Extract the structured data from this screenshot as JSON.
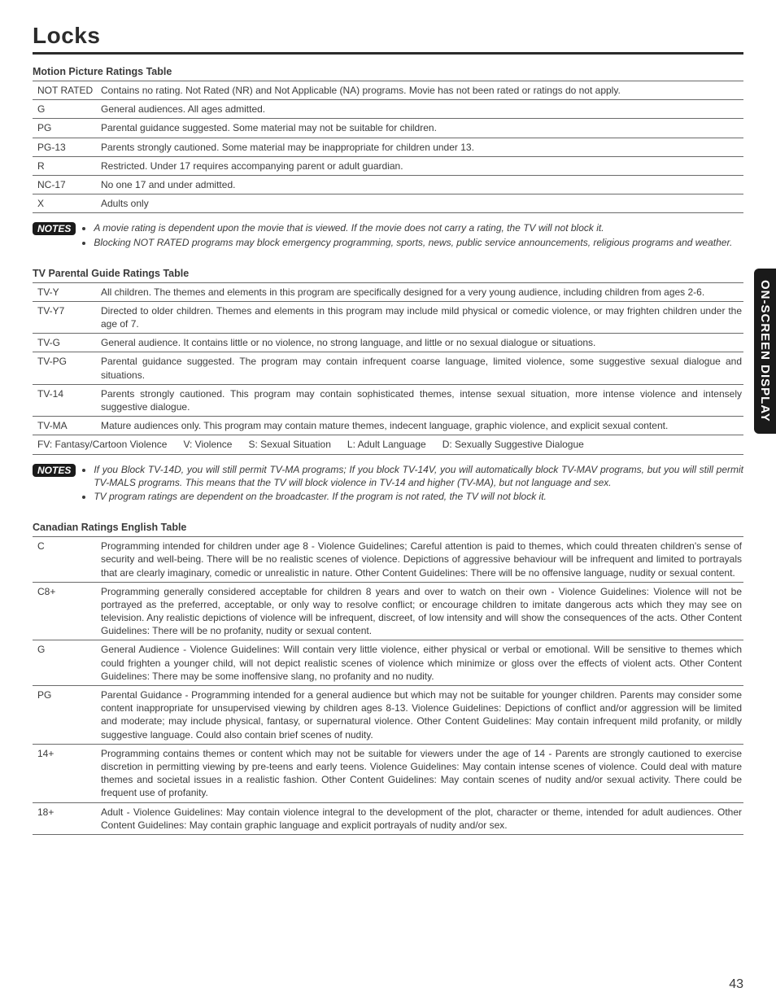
{
  "page": {
    "title": "Locks",
    "side_tab": "ON-SCREEN DISPLAY",
    "number": "43"
  },
  "mpaa": {
    "heading": "Motion Picture Ratings Table",
    "rows": [
      {
        "code": "NOT RATED",
        "desc": "Contains no rating. Not Rated (NR) and Not Applicable (NA) programs. Movie has not been rated or ratings do not apply."
      },
      {
        "code": "G",
        "desc": "General audiences. All ages admitted."
      },
      {
        "code": "PG",
        "desc": "Parental guidance suggested. Some material may not be suitable for children."
      },
      {
        "code": "PG-13",
        "desc": "Parents strongly cautioned. Some material may be inappropriate for children under 13."
      },
      {
        "code": "R",
        "desc": "Restricted. Under 17 requires accompanying parent or adult guardian."
      },
      {
        "code": "NC-17",
        "desc": "No one 17 and under admitted."
      },
      {
        "code": "X",
        "desc": "Adults only"
      }
    ],
    "notes_label": "NOTES",
    "notes": [
      "A movie rating is dependent upon the movie that is viewed. If the movie does not carry a rating, the TV will not block it.",
      "Blocking NOT RATED programs may block emergency programming, sports, news, public service announcements, religious programs and weather."
    ]
  },
  "tvpg": {
    "heading": "TV Parental Guide Ratings Table",
    "rows": [
      {
        "code": "TV-Y",
        "desc": "All children. The themes and elements in this program are specifically designed for a very young audience, including children from ages 2-6."
      },
      {
        "code": "TV-Y7",
        "desc": "Directed to older children. Themes and elements in this program may include mild physical or comedic violence, or may frighten children under the age of 7."
      },
      {
        "code": "TV-G",
        "desc": "General audience. It contains little or no violence, no strong language, and little or no sexual dialogue or situations."
      },
      {
        "code": "TV-PG",
        "desc": "Parental guidance suggested. The program may contain infrequent coarse language, limited violence, some suggestive sexual dialogue and situations."
      },
      {
        "code": "TV-14",
        "desc": "Parents strongly cautioned. This program may contain sophisticated themes, intense sexual situation, more intense violence and intensely suggestive dialogue."
      },
      {
        "code": "TV-MA",
        "desc": "Mature audiences only. This program may contain mature themes, indecent language, graphic violence, and explicit sexual content."
      }
    ],
    "abbr": {
      "fv": "FV: Fantasy/Cartoon Violence",
      "v": "V: Violence",
      "s": "S: Sexual Situation",
      "l": "L: Adult Language",
      "d": "D: Sexually Suggestive Dialogue"
    },
    "notes_label": "NOTES",
    "notes": [
      "If you Block TV-14D, you will still permit TV-MA programs; If you block TV-14V, you will automatically block TV-MAV programs, but you will still permit TV-MALS programs. This means that the TV will block violence in TV-14 and higher (TV-MA), but not language and sex.",
      "TV program ratings are dependent on the broadcaster. If the program is not rated, the TV will not block it."
    ]
  },
  "canadian": {
    "heading": "Canadian Ratings English Table",
    "rows": [
      {
        "code": "C",
        "desc": "Programming intended for children under age 8 - Violence Guidelines; Careful attention is paid to themes, which could threaten children's sense of security and well-being. There will be no realistic scenes of violence. Depictions of aggressive behaviour will be infrequent and limited to portrayals that are clearly imaginary, comedic or unrealistic in nature. Other Content Guidelines: There will be no offensive language, nudity or sexual content."
      },
      {
        "code": "C8+",
        "desc": "Programming generally considered acceptable for children 8 years and over to watch on their own - Violence Guidelines: Violence will not be portrayed as the preferred, acceptable, or only way to resolve conflict; or encourage children to imitate dangerous acts which they may see on television. Any realistic depictions of violence will be infrequent, discreet, of low intensity and will show the consequences of the acts. Other Content Guidelines: There will be no profanity, nudity or sexual content."
      },
      {
        "code": "G",
        "desc": "General Audience - Violence Guidelines: Will contain very little violence, either physical or verbal or emotional. Will be sensitive to themes which could frighten a younger child, will not depict realistic scenes of violence which minimize or gloss over the effects of violent acts. Other Content Guidelines: There may be some inoffensive slang, no profanity and no nudity."
      },
      {
        "code": "PG",
        "desc": "Parental Guidance - Programming intended for a general audience but which may not be suitable for younger children. Parents may consider some content inappropriate for unsupervised viewing by children ages 8-13. Violence Guidelines: Depictions of conflict and/or aggression will be limited and moderate; may include physical, fantasy, or supernatural violence. Other Content Guidelines: May contain infrequent mild profanity, or mildly suggestive language. Could also contain brief scenes of nudity."
      },
      {
        "code": "14+",
        "desc": "Programming contains themes or content which may not be suitable for viewers under the age of 14 - Parents are strongly cautioned to exercise discretion in permitting viewing by pre-teens and early teens. Violence Guidelines: May contain intense scenes of violence. Could deal with mature themes and societal issues in a realistic fashion. Other Content Guidelines: May contain scenes of nudity and/or sexual activity. There could be frequent use of profanity."
      },
      {
        "code": "18+",
        "desc": "Adult - Violence Guidelines: May contain violence integral to the development of the plot, character or theme, intended for adult audiences. Other Content Guidelines: May contain graphic language and explicit portrayals of nudity and/or sex."
      }
    ]
  }
}
